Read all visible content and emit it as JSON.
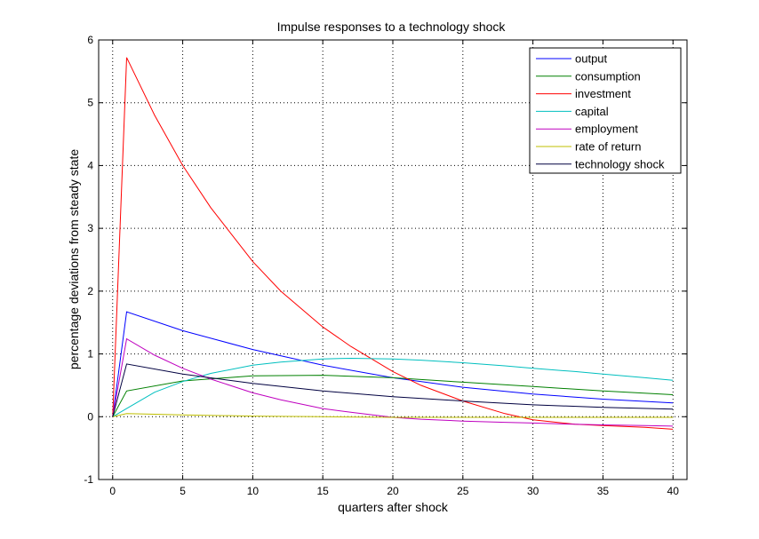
{
  "chart_data": {
    "type": "line",
    "title": "Impulse responses to a technology shock",
    "xlabel": "quarters after shock",
    "ylabel": "percentage deviations from steady state",
    "xlim": [
      -1,
      41
    ],
    "ylim": [
      -1,
      6
    ],
    "xticks": [
      0,
      5,
      10,
      15,
      20,
      25,
      30,
      35,
      40
    ],
    "yticks": [
      -1,
      0,
      1,
      2,
      3,
      4,
      5,
      6
    ],
    "grid": true,
    "legend_position": "top-right",
    "series": [
      {
        "name": "output",
        "color": "#0000ff",
        "x": [
          0,
          1,
          5,
          10,
          15,
          20,
          25,
          30,
          35,
          40
        ],
        "y": [
          0,
          1.67,
          1.37,
          1.07,
          0.82,
          0.62,
          0.47,
          0.36,
          0.28,
          0.22
        ]
      },
      {
        "name": "consumption",
        "color": "#008000",
        "x": [
          0,
          1,
          5,
          10,
          15,
          20,
          25,
          30,
          35,
          40
        ],
        "y": [
          0,
          0.41,
          0.57,
          0.65,
          0.66,
          0.62,
          0.55,
          0.48,
          0.41,
          0.35
        ]
      },
      {
        "name": "investment",
        "color": "#ff0000",
        "x": [
          0,
          1,
          3,
          5,
          7,
          10,
          12,
          15,
          17,
          20,
          22,
          25,
          28,
          30,
          33,
          35,
          38,
          40
        ],
        "y": [
          0,
          5.72,
          4.8,
          4.0,
          3.33,
          2.47,
          2.0,
          1.43,
          1.12,
          0.72,
          0.5,
          0.25,
          0.05,
          -0.05,
          -0.12,
          -0.14,
          -0.17,
          -0.2
        ]
      },
      {
        "name": "capital",
        "color": "#00bfbf",
        "x": [
          0,
          1,
          3,
          5,
          7,
          10,
          12,
          15,
          17,
          20,
          22,
          25,
          28,
          30,
          33,
          35,
          38,
          40
        ],
        "y": [
          0,
          0.13,
          0.39,
          0.56,
          0.69,
          0.82,
          0.87,
          0.92,
          0.93,
          0.92,
          0.9,
          0.86,
          0.81,
          0.77,
          0.72,
          0.68,
          0.62,
          0.58
        ]
      },
      {
        "name": "employment",
        "color": "#bf00bf",
        "x": [
          0,
          1,
          3,
          5,
          7,
          10,
          12,
          15,
          17,
          20,
          22,
          25,
          28,
          30,
          33,
          35,
          38,
          40
        ],
        "y": [
          0,
          1.24,
          0.98,
          0.77,
          0.6,
          0.38,
          0.27,
          0.13,
          0.07,
          -0.01,
          -0.04,
          -0.07,
          -0.09,
          -0.1,
          -0.12,
          -0.13,
          -0.14,
          -0.15
        ]
      },
      {
        "name": "rate of return",
        "color": "#bfbf00",
        "x": [
          0,
          1,
          5,
          10,
          15,
          20,
          25,
          30,
          35,
          40
        ],
        "y": [
          0,
          0.05,
          0.03,
          0.01,
          0.0,
          -0.01,
          -0.01,
          -0.01,
          -0.01,
          -0.01
        ]
      },
      {
        "name": "technology shock",
        "color": "#000040",
        "x": [
          0,
          1,
          5,
          10,
          15,
          20,
          25,
          30,
          35,
          40
        ],
        "y": [
          0,
          0.84,
          0.68,
          0.53,
          0.41,
          0.32,
          0.25,
          0.19,
          0.15,
          0.12
        ]
      }
    ]
  }
}
